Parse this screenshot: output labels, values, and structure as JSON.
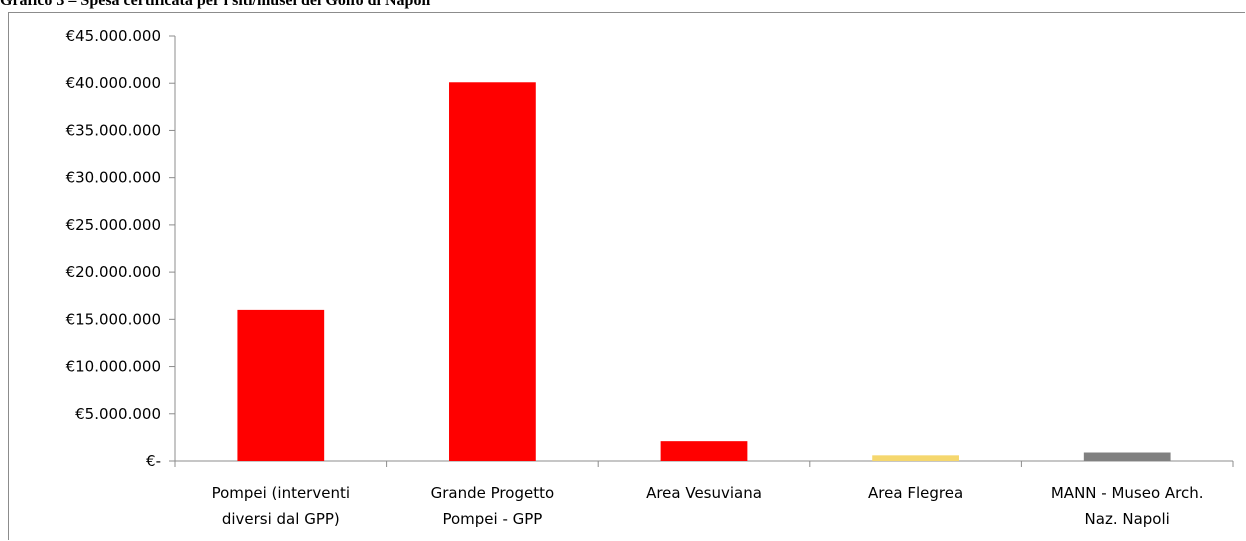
{
  "title": "Grafico 3 – Spesa certificata per i siti/musei del Golfo di Napoli",
  "chart_data": {
    "type": "bar",
    "categories": [
      [
        "Pompei (interventi",
        "diversi dal GPP)"
      ],
      [
        "Grande Progetto",
        "Pompei - GPP"
      ],
      [
        "Area Vesuviana"
      ],
      [
        "Area Flegrea"
      ],
      [
        "MANN - Museo Arch.",
        "Naz. Napoli"
      ]
    ],
    "values": [
      16000000,
      40100000,
      2100000,
      600000,
      900000
    ],
    "colors": [
      "#ff0000",
      "#ff0000",
      "#ff0000",
      "#f5d76e",
      "#808080"
    ],
    "ylim": [
      0,
      45000000
    ],
    "yticks": [
      0,
      5000000,
      10000000,
      15000000,
      20000000,
      25000000,
      30000000,
      35000000,
      40000000,
      45000000
    ],
    "ytick_labels": [
      "€-",
      "€5.000.000",
      "€10.000.000",
      "€15.000.000",
      "€20.000.000",
      "€25.000.000",
      "€30.000.000",
      "€35.000.000",
      "€40.000.000",
      "€45.000.000"
    ],
    "grid": false,
    "legend": "none"
  }
}
